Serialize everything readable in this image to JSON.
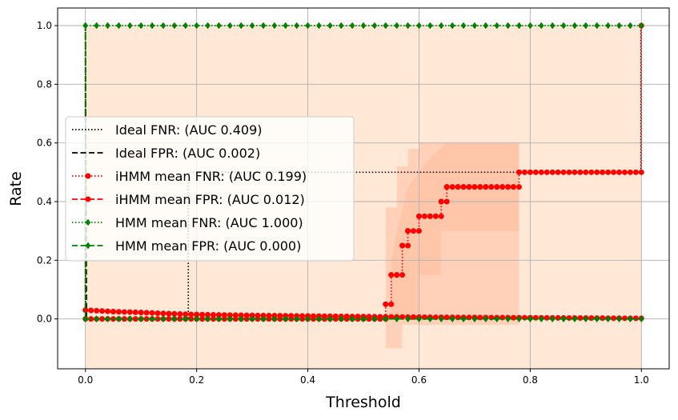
{
  "chart_data": {
    "type": "line",
    "title": "",
    "xlabel": "Threshold",
    "ylabel": "Rate",
    "xlim": [
      -0.05,
      1.05
    ],
    "ylim": [
      -0.17,
      1.06
    ],
    "xticks": [
      {
        "value": 0.0,
        "label": "0.0"
      },
      {
        "value": 0.2,
        "label": "0.2"
      },
      {
        "value": 0.4,
        "label": "0.4"
      },
      {
        "value": 0.6,
        "label": "0.6"
      },
      {
        "value": 0.8,
        "label": "0.8"
      },
      {
        "value": 1.0,
        "label": "1.0"
      }
    ],
    "yticks": [
      {
        "value": 0.0,
        "label": "0.0"
      },
      {
        "value": 0.2,
        "label": "0.2"
      },
      {
        "value": 0.4,
        "label": "0.4"
      },
      {
        "value": 0.6,
        "label": "0.6"
      },
      {
        "value": 0.8,
        "label": "0.8"
      },
      {
        "value": 1.0,
        "label": "1.0"
      }
    ],
    "grid": true,
    "legend_position": "center-left",
    "series": [
      {
        "name": "Ideal FNR: (AUC 0.409)",
        "color": "#000000",
        "dash": "dotted",
        "marker": "none",
        "points": [
          [
            0.0,
            1.0
          ],
          [
            0.0,
            0.0
          ],
          [
            0.185,
            0.0
          ],
          [
            0.185,
            0.5
          ],
          [
            0.999,
            0.5
          ],
          [
            0.999,
            1.0
          ]
        ]
      },
      {
        "name": "Ideal FPR: (AUC 0.002)",
        "color": "#000000",
        "dash": "dashed",
        "marker": "none",
        "points": [
          [
            0.0,
            1.0
          ],
          [
            0.002,
            0.0
          ],
          [
            1.0,
            0.0
          ]
        ]
      },
      {
        "name": "iHMM mean FNR: (AUC 0.199)",
        "color": "#ff0000",
        "dash": "dotted",
        "marker": "circle",
        "points": [
          [
            0.0,
            0.0
          ],
          [
            0.54,
            0.0
          ],
          [
            0.54,
            0.05
          ],
          [
            0.55,
            0.05
          ],
          [
            0.55,
            0.15
          ],
          [
            0.56,
            0.15
          ],
          [
            0.56,
            0.15
          ],
          [
            0.57,
            0.15
          ],
          [
            0.57,
            0.25
          ],
          [
            0.58,
            0.25
          ],
          [
            0.58,
            0.3
          ],
          [
            0.6,
            0.3
          ],
          [
            0.6,
            0.35
          ],
          [
            0.62,
            0.35
          ],
          [
            0.63,
            0.35
          ],
          [
            0.64,
            0.35
          ],
          [
            0.64,
            0.4
          ],
          [
            0.65,
            0.4
          ],
          [
            0.65,
            0.45
          ],
          [
            0.67,
            0.45
          ],
          [
            0.68,
            0.45
          ],
          [
            0.69,
            0.45
          ],
          [
            0.7,
            0.45
          ],
          [
            0.71,
            0.45
          ],
          [
            0.72,
            0.45
          ],
          [
            0.73,
            0.45
          ],
          [
            0.74,
            0.45
          ],
          [
            0.75,
            0.45
          ],
          [
            0.76,
            0.45
          ],
          [
            0.77,
            0.45
          ],
          [
            0.78,
            0.45
          ],
          [
            0.78,
            0.5
          ],
          [
            1.0,
            0.5
          ],
          [
            1.0,
            1.0
          ]
        ]
      },
      {
        "name": "iHMM mean FPR: (AUC 0.012)",
        "color": "#ff0000",
        "dash": "dashed",
        "marker": "circle",
        "points": [
          [
            0.0,
            1.0
          ],
          [
            0.0,
            0.03
          ],
          [
            0.05,
            0.025
          ],
          [
            0.1,
            0.022
          ],
          [
            0.15,
            0.018
          ],
          [
            0.2,
            0.015
          ],
          [
            0.3,
            0.012
          ],
          [
            0.4,
            0.01
          ],
          [
            0.5,
            0.008
          ],
          [
            0.6,
            0.006
          ],
          [
            0.7,
            0.005
          ],
          [
            0.8,
            0.004
          ],
          [
            0.9,
            0.003
          ],
          [
            1.0,
            0.002
          ]
        ]
      },
      {
        "name": "HMM mean FNR: (AUC 1.000)",
        "color": "#008000",
        "dash": "dotted",
        "marker": "diamond",
        "points": [
          [
            0.0,
            0.0
          ],
          [
            0.0,
            1.0
          ],
          [
            1.0,
            1.0
          ]
        ]
      },
      {
        "name": "HMM mean FPR: (AUC 0.000)",
        "color": "#008000",
        "dash": "dashed",
        "marker": "diamond",
        "points": [
          [
            0.0,
            1.0
          ],
          [
            0.0,
            0.0
          ],
          [
            1.0,
            0.0
          ]
        ]
      }
    ],
    "bands": [
      {
        "color": "#ffe8d6",
        "opacity": 1.0,
        "polygon": [
          [
            0.0,
            -0.17
          ],
          [
            1.0,
            -0.17
          ],
          [
            1.0,
            1.0
          ],
          [
            0.0,
            1.0
          ]
        ]
      },
      {
        "color": "#ffcdb4",
        "opacity": 0.85,
        "polygon": [
          [
            0.54,
            -0.1
          ],
          [
            0.57,
            -0.1
          ],
          [
            0.57,
            -0.02
          ],
          [
            0.6,
            -0.02
          ],
          [
            0.6,
            -0.02
          ],
          [
            0.78,
            -0.02
          ],
          [
            0.78,
            0.6
          ],
          [
            0.65,
            0.6
          ],
          [
            0.65,
            0.6
          ],
          [
            0.6,
            0.6
          ],
          [
            0.6,
            0.58
          ],
          [
            0.58,
            0.58
          ],
          [
            0.58,
            0.52
          ],
          [
            0.56,
            0.52
          ],
          [
            0.56,
            0.38
          ],
          [
            0.54,
            0.38
          ]
        ]
      },
      {
        "color": "#ffb89a",
        "opacity": 0.45,
        "polygon": [
          [
            0.55,
            0.0
          ],
          [
            0.6,
            0.0
          ],
          [
            0.6,
            0.15
          ],
          [
            0.64,
            0.15
          ],
          [
            0.64,
            0.3
          ],
          [
            0.78,
            0.3
          ],
          [
            0.78,
            0.6
          ],
          [
            0.65,
            0.6
          ],
          [
            0.62,
            0.55
          ],
          [
            0.58,
            0.45
          ],
          [
            0.56,
            0.3
          ],
          [
            0.55,
            0.2
          ]
        ]
      }
    ]
  }
}
